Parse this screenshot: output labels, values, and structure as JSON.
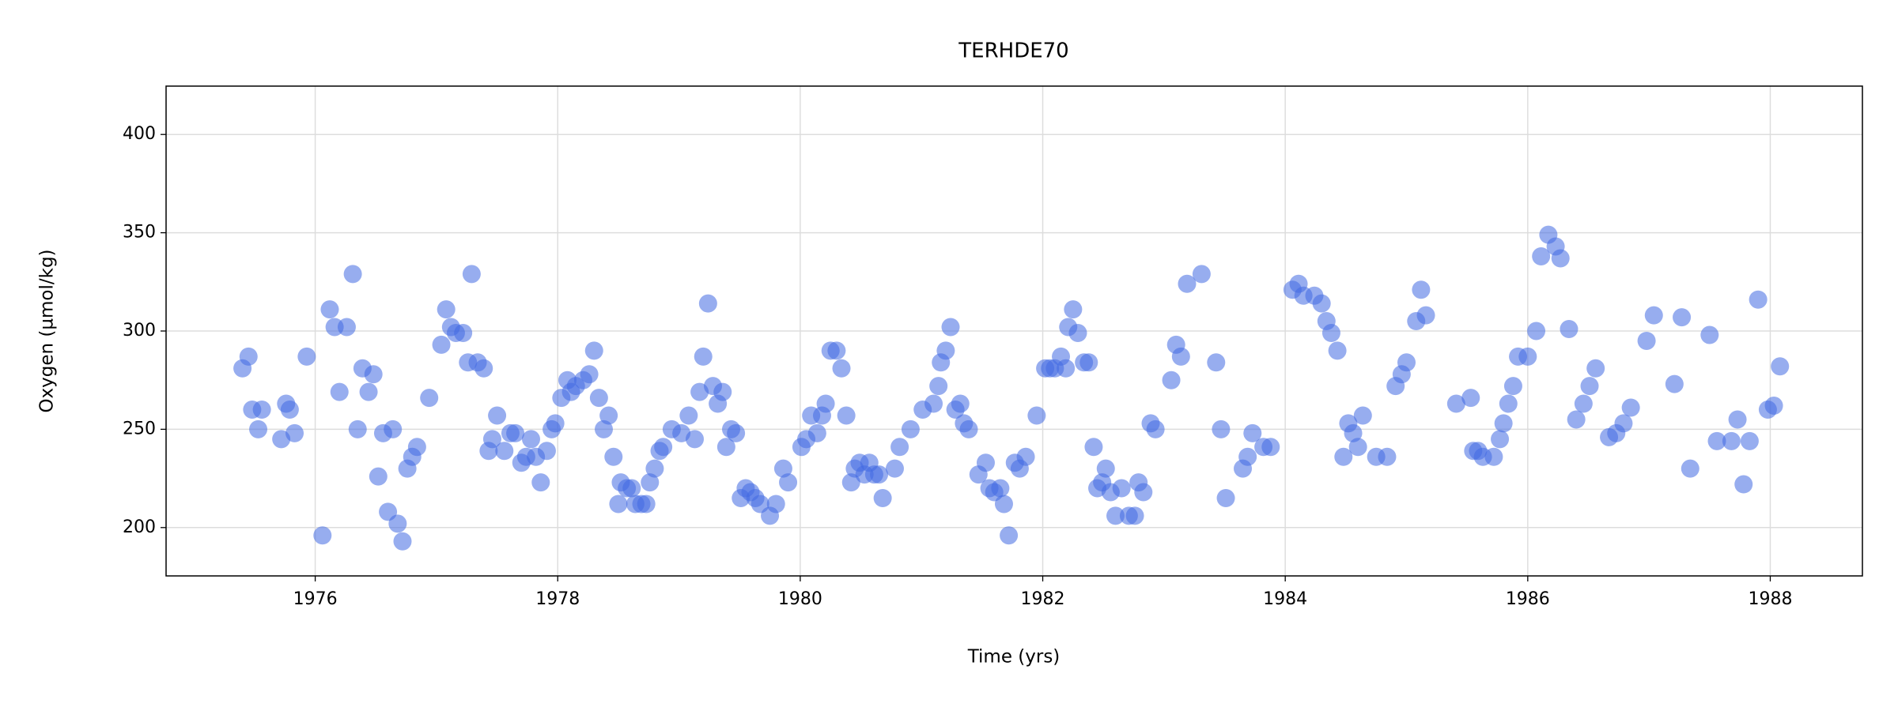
{
  "chart_data": {
    "type": "scatter",
    "title": "TERHDE70",
    "xlabel": "Time (yrs)",
    "ylabel": "Oxygen (µmol/kg)",
    "color": "#4169e1",
    "opacity": 0.55,
    "grid": true,
    "xlim": [
      1974.77,
      1988.76
    ],
    "ylim": [
      175.4,
      424.6
    ],
    "xticks": [
      1976,
      1978,
      1980,
      1982,
      1984,
      1986,
      1988
    ],
    "yticks": [
      200,
      250,
      300,
      350,
      400
    ],
    "x": [
      1975.4,
      1975.45,
      1975.48,
      1975.53,
      1975.56,
      1975.72,
      1975.76,
      1975.79,
      1975.83,
      1975.93,
      1976.06,
      1976.12,
      1976.16,
      1976.2,
      1976.26,
      1976.31,
      1976.35,
      1976.39,
      1976.44,
      1976.48,
      1976.52,
      1976.56,
      1976.6,
      1976.64,
      1976.68,
      1976.72,
      1976.76,
      1976.8,
      1976.84,
      1976.94,
      1977.04,
      1977.08,
      1977.12,
      1977.16,
      1977.22,
      1977.26,
      1977.29,
      1977.34,
      1977.39,
      1977.43,
      1977.46,
      1977.5,
      1977.56,
      1977.61,
      1977.65,
      1977.7,
      1977.74,
      1977.78,
      1977.82,
      1977.86,
      1977.91,
      1977.95,
      1977.98,
      1978.03,
      1978.08,
      1978.11,
      1978.15,
      1978.21,
      1978.26,
      1978.3,
      1978.34,
      1978.38,
      1978.42,
      1978.46,
      1978.5,
      1978.52,
      1978.57,
      1978.61,
      1978.64,
      1978.69,
      1978.73,
      1978.76,
      1978.8,
      1978.84,
      1978.87,
      1978.94,
      1979.02,
      1979.08,
      1979.13,
      1979.17,
      1979.2,
      1979.24,
      1979.28,
      1979.32,
      1979.36,
      1979.39,
      1979.43,
      1979.47,
      1979.51,
      1979.55,
      1979.59,
      1979.63,
      1979.67,
      1979.75,
      1979.8,
      1979.86,
      1979.9,
      1980.01,
      1980.05,
      1980.09,
      1980.14,
      1980.18,
      1980.21,
      1980.25,
      1980.3,
      1980.34,
      1980.38,
      1980.42,
      1980.45,
      1980.49,
      1980.53,
      1980.57,
      1980.61,
      1980.65,
      1980.68,
      1980.78,
      1980.82,
      1980.91,
      1981.01,
      1981.1,
      1981.14,
      1981.16,
      1981.2,
      1981.24,
      1981.28,
      1981.32,
      1981.35,
      1981.39,
      1981.47,
      1981.53,
      1981.56,
      1981.6,
      1981.65,
      1981.68,
      1981.72,
      1981.77,
      1981.81,
      1981.86,
      1981.95,
      1982.02,
      1982.06,
      1982.1,
      1982.15,
      1982.19,
      1982.21,
      1982.25,
      1982.29,
      1982.34,
      1982.38,
      1982.42,
      1982.45,
      1982.49,
      1982.52,
      1982.56,
      1982.6,
      1982.65,
      1982.71,
      1982.76,
      1982.79,
      1982.83,
      1982.89,
      1982.93,
      1983.06,
      1983.1,
      1983.14,
      1983.19,
      1983.31,
      1983.43,
      1983.47,
      1983.51,
      1983.65,
      1983.69,
      1983.73,
      1983.82,
      1983.88,
      1984.06,
      1984.11,
      1984.15,
      1984.24,
      1984.3,
      1984.34,
      1984.38,
      1984.43,
      1984.48,
      1984.52,
      1984.56,
      1984.6,
      1984.64,
      1984.75,
      1984.84,
      1984.91,
      1984.96,
      1985.0,
      1985.08,
      1985.12,
      1985.16,
      1985.41,
      1985.53,
      1985.55,
      1985.59,
      1985.63,
      1985.72,
      1985.77,
      1985.8,
      1985.84,
      1985.88,
      1985.92,
      1986.0,
      1986.07,
      1986.11,
      1986.17,
      1986.23,
      1986.27,
      1986.34,
      1986.4,
      1986.46,
      1986.51,
      1986.56,
      1986.67,
      1986.73,
      1986.79,
      1986.85,
      1986.98,
      1987.04,
      1987.21,
      1987.27,
      1987.34,
      1987.5,
      1987.56,
      1987.68,
      1987.73,
      1987.78,
      1987.83,
      1987.9,
      1987.98,
      1988.03,
      1988.08
    ],
    "values": [
      281,
      287,
      260,
      250,
      260,
      245,
      263,
      260,
      248,
      287,
      196,
      311,
      302,
      269,
      302,
      329,
      250,
      281,
      269,
      278,
      226,
      248,
      208,
      250,
      202,
      193,
      230,
      236,
      241,
      266,
      293,
      311,
      302,
      299,
      299,
      284,
      329,
      284,
      281,
      239,
      245,
      257,
      239,
      248,
      248,
      233,
      236,
      245,
      236,
      223,
      239,
      250,
      253,
      266,
      275,
      269,
      272,
      275,
      278,
      290,
      266,
      250,
      257,
      236,
      212,
      223,
      220,
      220,
      212,
      212,
      212,
      223,
      230,
      239,
      241,
      250,
      248,
      257,
      245,
      269,
      287,
      314,
      272,
      263,
      269,
      241,
      250,
      248,
      215,
      220,
      218,
      215,
      212,
      206,
      212,
      230,
      223,
      241,
      245,
      257,
      248,
      257,
      263,
      290,
      290,
      281,
      257,
      223,
      230,
      233,
      227,
      233,
      227,
      227,
      215,
      230,
      241,
      250,
      260,
      263,
      272,
      284,
      290,
      302,
      260,
      263,
      253,
      250,
      227,
      233,
      220,
      218,
      220,
      212,
      196,
      233,
      230,
      236,
      257,
      281,
      281,
      281,
      287,
      281,
      302,
      311,
      299,
      284,
      284,
      241,
      220,
      223,
      230,
      218,
      206,
      220,
      206,
      206,
      223,
      218,
      253,
      250,
      275,
      293,
      287,
      324,
      329,
      284,
      250,
      215,
      230,
      236,
      248,
      241,
      241,
      321,
      324,
      318,
      318,
      314,
      305,
      299,
      290,
      236,
      253,
      248,
      241,
      257,
      236,
      236,
      272,
      278,
      284,
      305,
      321,
      308,
      263,
      266,
      239,
      239,
      236,
      236,
      245,
      253,
      263,
      272,
      287,
      287,
      300,
      338,
      349,
      343,
      337,
      301,
      255,
      263,
      272,
      281,
      246,
      248,
      253,
      261,
      295,
      308,
      273,
      307,
      230,
      298,
      244,
      244,
      255,
      222,
      244,
      316,
      260,
      262,
      282
    ]
  }
}
